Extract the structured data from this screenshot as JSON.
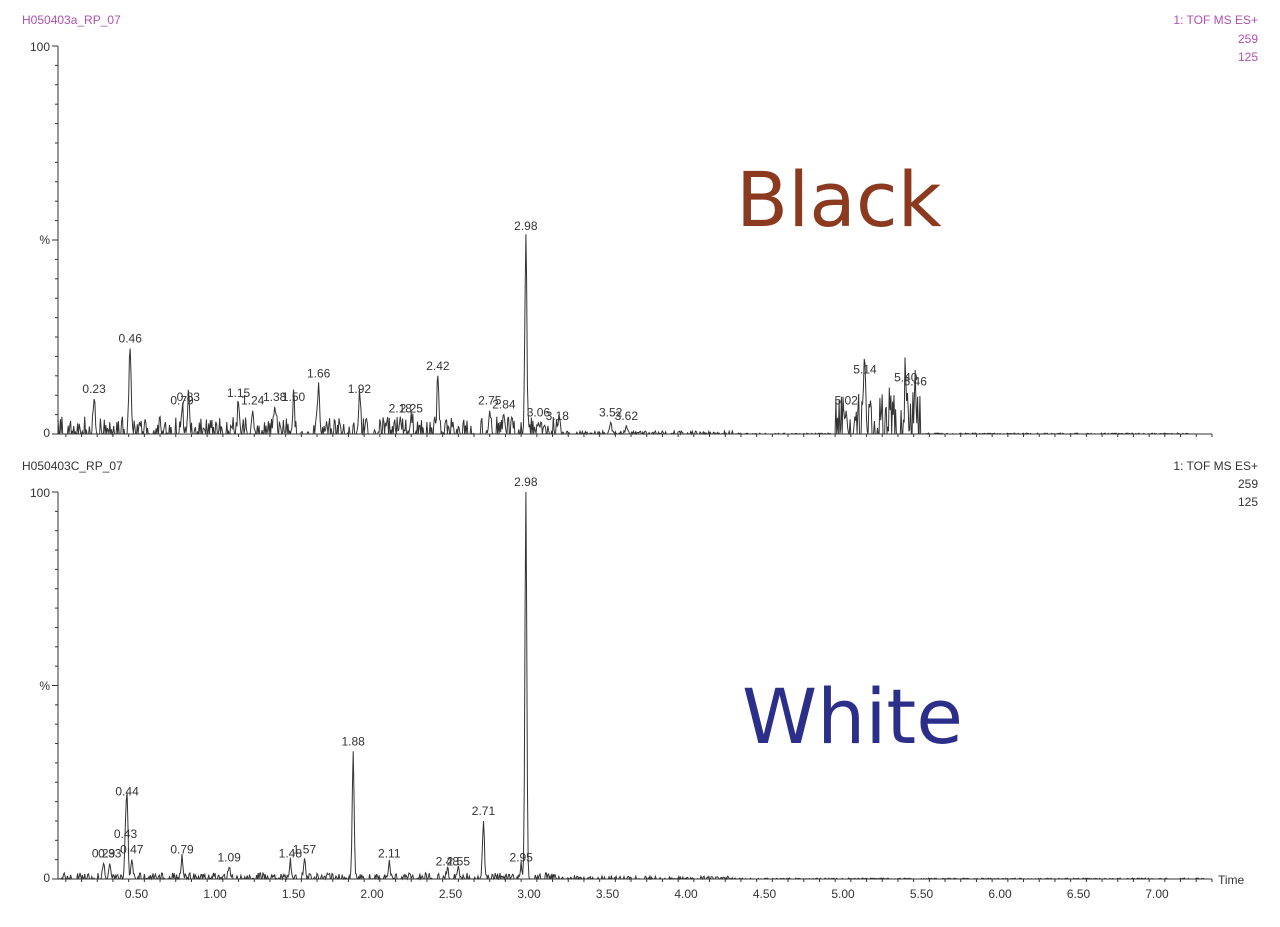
{
  "colors": {
    "header_magenta": "#b050b0",
    "black_label": "#8b3a1f",
    "white_label": "#2b2f8a",
    "trace": "#333333"
  },
  "chart_data": [
    {
      "type": "line",
      "sample": "H050403a_RP_07",
      "function": "1: TOF MS ES+",
      "mass": "259",
      "intensity": "125",
      "big_label": "Black",
      "ylabel": "%",
      "ytick_labels": [
        "100",
        "0"
      ],
      "ylim": [
        0,
        100
      ],
      "xlim": [
        0,
        7.45
      ],
      "peaks": [
        {
          "x": 0.23,
          "y": 9,
          "label": "0.23"
        },
        {
          "x": 0.46,
          "y": 22,
          "label": "0.46"
        },
        {
          "x": 0.79,
          "y": 6,
          "label": "0.79"
        },
        {
          "x": 0.83,
          "y": 7,
          "label": "0.83"
        },
        {
          "x": 1.15,
          "y": 8,
          "label": "1.15"
        },
        {
          "x": 1.24,
          "y": 6,
          "label": "1.24"
        },
        {
          "x": 1.38,
          "y": 7,
          "label": "1.38"
        },
        {
          "x": 1.5,
          "y": 7,
          "label": "1.50"
        },
        {
          "x": 1.66,
          "y": 13,
          "label": "1.66"
        },
        {
          "x": 1.92,
          "y": 9,
          "label": "1.92"
        },
        {
          "x": 2.18,
          "y": 4,
          "label": "2.18"
        },
        {
          "x": 2.25,
          "y": 4,
          "label": "2.25"
        },
        {
          "x": 2.42,
          "y": 15,
          "label": "2.42"
        },
        {
          "x": 2.75,
          "y": 6,
          "label": "2.75"
        },
        {
          "x": 2.84,
          "y": 5,
          "label": "2.84"
        },
        {
          "x": 2.98,
          "y": 51,
          "label": "2.98"
        },
        {
          "x": 3.06,
          "y": 3,
          "label": "3.06"
        },
        {
          "x": 3.18,
          "y": 2,
          "label": "3.18"
        },
        {
          "x": 3.52,
          "y": 3,
          "label": "3.52"
        },
        {
          "x": 3.62,
          "y": 2,
          "label": "3.62"
        },
        {
          "x": 5.02,
          "y": 6,
          "label": "5.02"
        },
        {
          "x": 5.14,
          "y": 14,
          "label": "5.14"
        },
        {
          "x": 5.4,
          "y": 12,
          "label": "5.40"
        },
        {
          "x": 5.46,
          "y": 11,
          "label": "5.46"
        }
      ]
    },
    {
      "type": "line",
      "sample": "H050403C_RP_07",
      "function": "1: TOF MS ES+",
      "mass": "259",
      "intensity": "125",
      "big_label": "White",
      "ylabel": "%",
      "ytick_labels": [
        "100",
        "0"
      ],
      "ylim": [
        0,
        100
      ],
      "xlim": [
        0,
        7.45
      ],
      "xlabel": "Time",
      "xticks": [
        "0.50",
        "1.00",
        "1.50",
        "2.00",
        "2.50",
        "3.00",
        "3.50",
        "4.00",
        "4.50",
        "5.00",
        "5.50",
        "6.00",
        "6.50",
        "7.00"
      ],
      "peaks": [
        {
          "x": 0.29,
          "y": 4,
          "label": "0.29"
        },
        {
          "x": 0.33,
          "y": 4,
          "label": "0.33"
        },
        {
          "x": 0.43,
          "y": 9,
          "label": "0.43"
        },
        {
          "x": 0.44,
          "y": 20,
          "label": "0.44"
        },
        {
          "x": 0.47,
          "y": 5,
          "label": "0.47"
        },
        {
          "x": 0.79,
          "y": 5,
          "label": "0.79"
        },
        {
          "x": 1.09,
          "y": 3,
          "label": "1.09"
        },
        {
          "x": 1.48,
          "y": 4,
          "label": "1.48"
        },
        {
          "x": 1.57,
          "y": 5,
          "label": "1.57"
        },
        {
          "x": 1.88,
          "y": 33,
          "label": "1.88"
        },
        {
          "x": 2.11,
          "y": 4,
          "label": "2.11"
        },
        {
          "x": 2.48,
          "y": 2,
          "label": "2.48"
        },
        {
          "x": 2.55,
          "y": 2,
          "label": "2.55"
        },
        {
          "x": 2.71,
          "y": 15,
          "label": "2.71"
        },
        {
          "x": 2.95,
          "y": 3,
          "label": "2.95"
        },
        {
          "x": 2.98,
          "y": 100,
          "label": "2.98"
        }
      ]
    }
  ]
}
